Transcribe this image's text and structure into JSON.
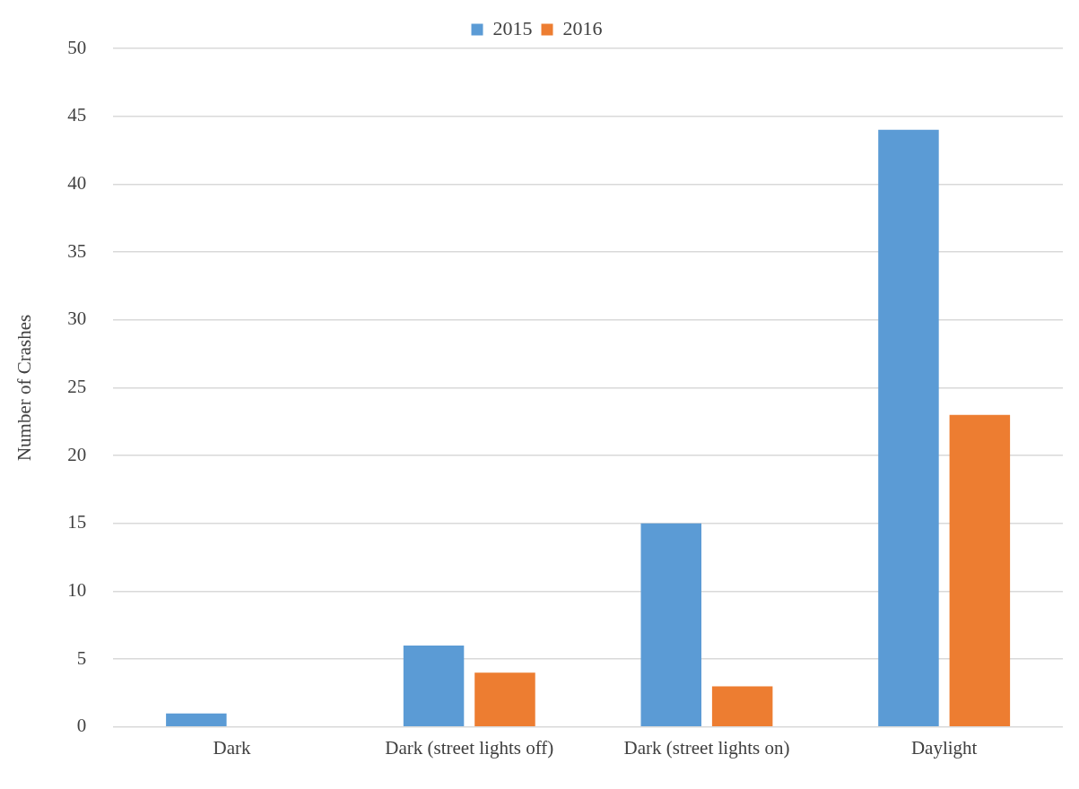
{
  "chart_data": {
    "type": "bar",
    "categories": [
      "Dark",
      "Dark (street lights off)",
      "Dark (street lights on)",
      "Daylight"
    ],
    "series": [
      {
        "name": "2015",
        "color": "#5b9bd5",
        "values": [
          1,
          6,
          15,
          44
        ]
      },
      {
        "name": "2016",
        "color": "#ed7d31",
        "values": [
          0,
          4,
          3,
          23
        ]
      }
    ],
    "ylabel": "Number of Crashes",
    "ylim": [
      0,
      50
    ],
    "yticks": [
      0,
      5,
      10,
      15,
      20,
      25,
      30,
      35,
      40,
      45,
      50
    ],
    "grid": "y",
    "legend": "top"
  }
}
